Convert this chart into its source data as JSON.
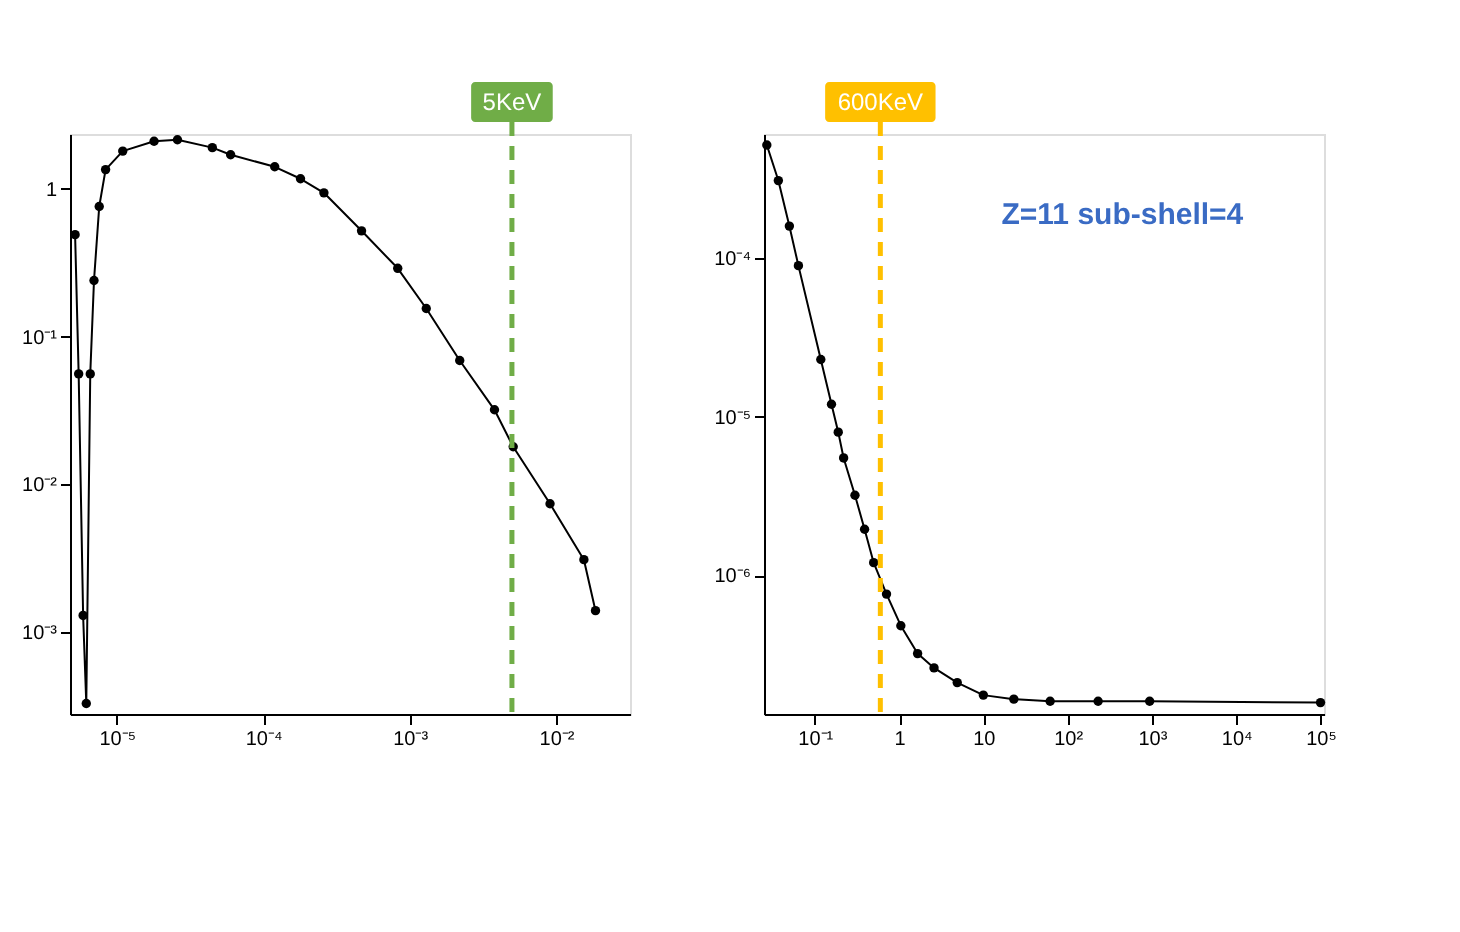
{
  "chart_data": [
    {
      "type": "line",
      "log": "xy",
      "grid": false,
      "marker": "circle",
      "line_style": "solid",
      "xlim": [
        4.8e-06,
        0.032
      ],
      "ylim": [
        0.00028,
        2.35
      ],
      "xticks": [
        {
          "value": 1e-05,
          "label": "10⁻⁵"
        },
        {
          "value": 0.0001,
          "label": "10⁻⁴"
        },
        {
          "value": 0.001,
          "label": "10⁻³"
        },
        {
          "value": 0.01,
          "label": "10⁻²"
        }
      ],
      "yticks": [
        {
          "value": 0.001,
          "label": "10⁻³"
        },
        {
          "value": 0.01,
          "label": "10⁻²"
        },
        {
          "value": 0.1,
          "label": "10⁻¹"
        },
        1
      ],
      "series": [
        {
          "color": "#000000",
          "x": [
            5.2e-06,
            5.5e-06,
            5.9e-06,
            6.2e-06,
            6.6e-06,
            7e-06,
            7.6e-06,
            8.4e-06,
            1.1e-05,
            1.8e-05,
            2.6e-05,
            4.5e-05,
            6e-05,
            0.00012,
            0.00018,
            0.00026,
            0.00047,
            0.00083,
            0.0013,
            0.0022,
            0.0038,
            0.0051,
            0.0091,
            0.0155,
            0.0186
          ],
          "values": [
            0.49,
            0.056,
            0.0013,
            0.00033,
            0.056,
            0.24,
            0.76,
            1.35,
            1.8,
            2.1,
            2.15,
            1.9,
            1.7,
            1.41,
            1.17,
            0.94,
            0.52,
            0.29,
            0.155,
            0.069,
            0.032,
            0.018,
            0.0074,
            0.0031,
            0.0014
          ]
        }
      ],
      "ref_lines": [
        {
          "axis": "x",
          "value": 0.005,
          "label": "5KeV",
          "color": "#70ad47",
          "line_style": "dashed"
        }
      ]
    },
    {
      "type": "line",
      "log": "xy",
      "grid": false,
      "marker": "circle",
      "line_style": "solid",
      "xlim": [
        0.025,
        110000
      ],
      "ylim": [
        1.33e-07,
        0.00061
      ],
      "xticks": [
        {
          "value": 0.1,
          "label": "10⁻¹"
        },
        1,
        10,
        {
          "value": 100,
          "label": "10²"
        },
        {
          "value": 1000,
          "label": "10³"
        },
        {
          "value": 10000,
          "label": "10⁴"
        },
        {
          "value": 100000,
          "label": "10⁵"
        }
      ],
      "yticks": [
        {
          "value": 1e-06,
          "label": "10⁻⁶"
        },
        {
          "value": 1e-05,
          "label": "10⁻⁵"
        },
        {
          "value": 0.0001,
          "label": "10⁻⁴"
        }
      ],
      "series": [
        {
          "color": "#000000",
          "x": [
            0.027,
            0.037,
            0.05,
            0.064,
            0.118,
            0.158,
            0.19,
            0.22,
            0.3,
            0.39,
            0.5,
            0.71,
            1.05,
            1.66,
            2.6,
            4.9,
            10,
            23,
            62,
            230,
            940,
            100000
          ],
          "values": [
            0.00052,
            0.00031,
            0.00016,
            9e-05,
            2.3e-05,
            1.2e-05,
            8e-06,
            5.5e-06,
            3.2e-06,
            1.95e-06,
            1.2e-06,
            7.6e-07,
            4.8e-07,
            3.2e-07,
            2.6e-07,
            2.1e-07,
            1.75e-07,
            1.65e-07,
            1.6e-07,
            1.6e-07,
            1.6e-07,
            1.57e-07
          ]
        }
      ],
      "ref_lines": [
        {
          "axis": "x",
          "value": 0.6,
          "label": "600KeV",
          "color": "#ffc000",
          "line_style": "dashed"
        }
      ],
      "annotations": [
        "Z=11 sub-shell=4"
      ]
    }
  ]
}
